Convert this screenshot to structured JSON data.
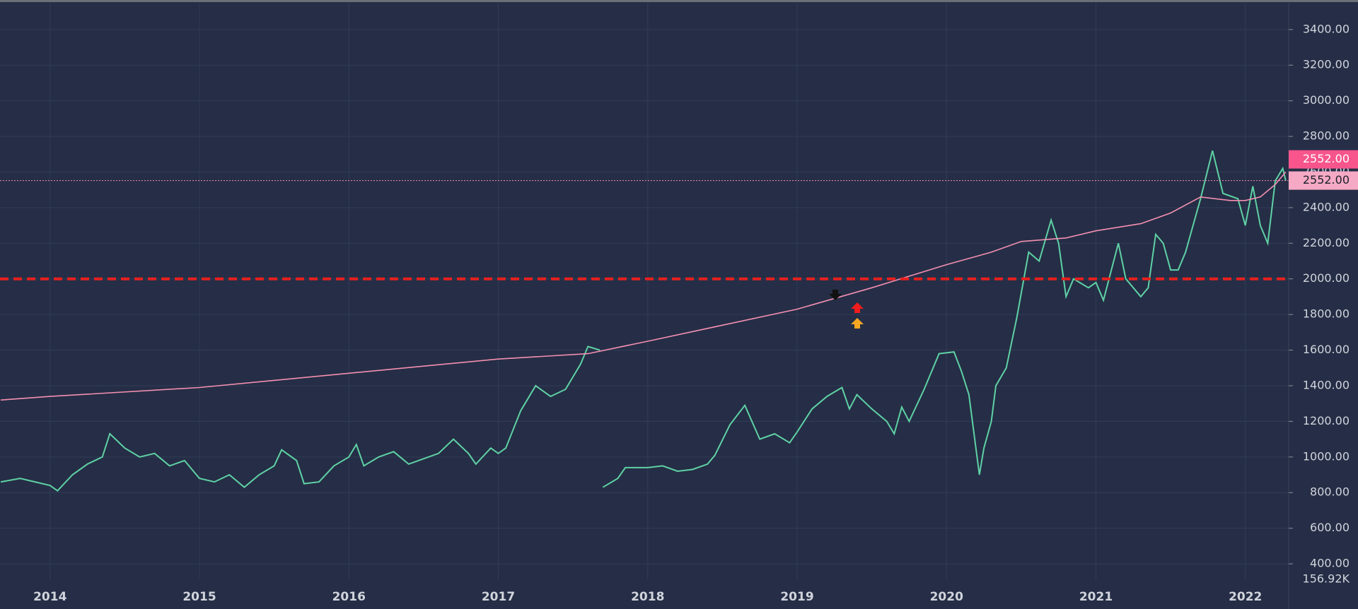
{
  "chart_data": {
    "type": "line",
    "xlim": [
      2013.665,
      2022.29
    ],
    "xticks": [
      2014,
      2015,
      2016,
      2017,
      2018,
      2019,
      2020,
      2021,
      2022
    ],
    "ylim": [
      313,
      3550
    ],
    "yticks": [
      {
        "value": 400,
        "label": "400.00"
      },
      {
        "value": 600,
        "label": "600.00"
      },
      {
        "value": 800,
        "label": "800.00"
      },
      {
        "value": 1000,
        "label": "1000.00"
      },
      {
        "value": 1200,
        "label": "1200.00"
      },
      {
        "value": 1400,
        "label": "1400.00"
      },
      {
        "value": 1600,
        "label": "1600.00"
      },
      {
        "value": 1800,
        "label": "1800.00"
      },
      {
        "value": 2000,
        "label": "2000.00"
      },
      {
        "value": 2200,
        "label": "2200.00"
      },
      {
        "value": 2400,
        "label": "2400.00"
      },
      {
        "value": 2600,
        "label": "2600.00"
      },
      {
        "value": 2800,
        "label": "2800.00"
      },
      {
        "value": 3000,
        "label": "3000.00"
      },
      {
        "value": 3200,
        "label": "3200.00"
      },
      {
        "value": 3400,
        "label": "3400.00"
      }
    ],
    "grid": true,
    "series": [
      {
        "color": "#5fd1a5",
        "x": [
          2013.67,
          2013.8,
          2013.9,
          2014.0,
          2014.05,
          2014.15,
          2014.25,
          2014.35,
          2014.4,
          2014.5,
          2014.6,
          2014.7,
          2014.8,
          2014.9,
          2015.0,
          2015.1,
          2015.2,
          2015.3,
          2015.4,
          2015.5,
          2015.55,
          2015.65,
          2015.7,
          2015.8,
          2015.9,
          2016.0,
          2016.05,
          2016.1,
          2016.2,
          2016.3,
          2016.4,
          2016.5,
          2016.6,
          2016.7,
          2016.8,
          2016.85,
          2016.95,
          2017.0,
          2017.05,
          2017.15,
          2017.25,
          2017.35,
          2017.45,
          2017.55,
          2017.6,
          2017.68,
          2017.69,
          2017.7,
          2017.8,
          2017.85,
          2018.0,
          2018.1,
          2018.2,
          2018.3,
          2018.4,
          2018.45,
          2018.55,
          2018.65,
          2018.75,
          2018.85,
          2018.95,
          2019.0,
          2019.1,
          2019.2,
          2019.3,
          2019.35,
          2019.4,
          2019.5,
          2019.6,
          2019.65,
          2019.7,
          2019.75,
          2019.85,
          2019.95,
          2020.05,
          2020.1,
          2020.15,
          2020.22,
          2020.25,
          2020.3,
          2020.33,
          2020.4,
          2020.47,
          2020.55,
          2020.62,
          2020.7,
          2020.75,
          2020.8,
          2020.85,
          2020.95,
          2021.0,
          2021.05,
          2021.15,
          2021.2,
          2021.3,
          2021.35,
          2021.4,
          2021.45,
          2021.5,
          2021.55,
          2021.6,
          2021.7,
          2021.78,
          2021.85,
          2021.95,
          2022.0,
          2022.05,
          2022.1,
          2022.15,
          2022.2,
          2022.25,
          2022.27
        ],
        "values": [
          860,
          880,
          860,
          840,
          810,
          900,
          960,
          1000,
          1130,
          1050,
          1000,
          1020,
          950,
          980,
          880,
          860,
          900,
          830,
          900,
          950,
          1040,
          980,
          850,
          860,
          950,
          1000,
          1070,
          950,
          1000,
          1030,
          960,
          990,
          1020,
          1100,
          1020,
          960,
          1050,
          1020,
          1050,
          1260,
          1400,
          1340,
          1380,
          1520,
          1620,
          1600,
          null,
          830,
          880,
          940,
          940,
          950,
          920,
          930,
          960,
          1010,
          1180,
          1290,
          1100,
          1130,
          1080,
          1140,
          1270,
          1340,
          1390,
          1270,
          1350,
          1270,
          1200,
          1130,
          1280,
          1200,
          1380,
          1580,
          1590,
          1480,
          1350,
          900,
          1050,
          1200,
          1400,
          1500,
          1780,
          2150,
          2100,
          2330,
          2200,
          1900,
          2000,
          1950,
          1980,
          1880,
          2200,
          2000,
          1900,
          1950,
          2250,
          2200,
          2050,
          2050,
          2150,
          2450,
          2720,
          2480,
          2450,
          2300,
          2520,
          2300,
          2200,
          2550,
          2620,
          2552
        ]
      },
      {
        "color": "#f48fb1",
        "x": [
          2013.67,
          2014.0,
          2015.0,
          2016.0,
          2017.0,
          2017.6,
          2018.0,
          2018.5,
          2019.0,
          2019.5,
          2020.0,
          2020.3,
          2020.5,
          2020.8,
          2021.0,
          2021.3,
          2021.5,
          2021.7,
          2021.9,
          2022.0,
          2022.1,
          2022.2,
          2022.27
        ],
        "values": [
          1320,
          1340,
          1390,
          1470,
          1550,
          1580,
          1650,
          1740,
          1830,
          1950,
          2080,
          2150,
          2210,
          2230,
          2270,
          2310,
          2370,
          2460,
          2440,
          2440,
          2460,
          2530,
          2600
        ]
      }
    ],
    "hlines": [
      {
        "value": 2000,
        "color": "#e8201e"
      },
      {
        "value": 2552,
        "color": "#f48fb1",
        "label": "2552.00"
      }
    ],
    "price_tag": "2552.00",
    "volume_label": "156.92K"
  }
}
